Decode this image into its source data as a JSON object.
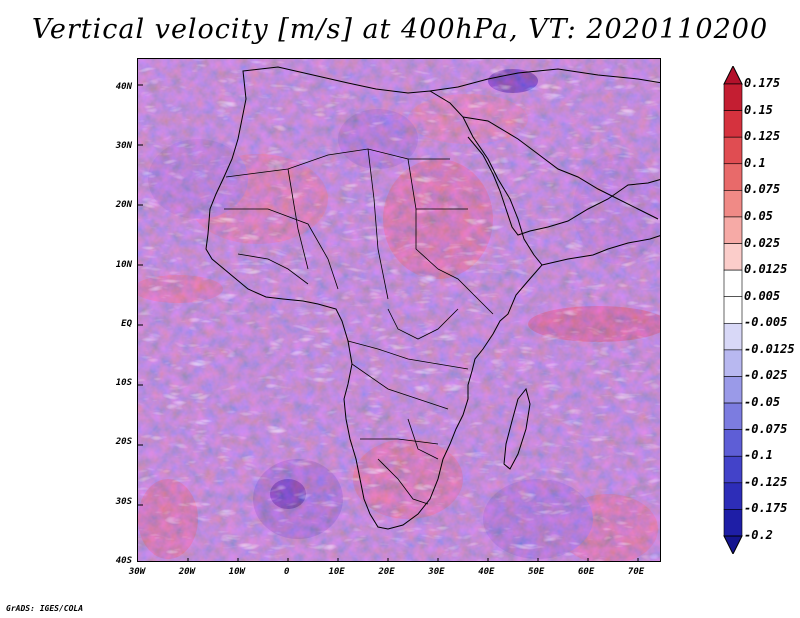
{
  "title": "Vertical velocity [m/s] at 400hPa, VT: 2020110200",
  "credit": "GrADS: IGES/COLA",
  "map": {
    "region": "Africa",
    "projection": "lat-lon",
    "lon_range": [
      -30,
      75
    ],
    "lat_range": [
      -40,
      45
    ],
    "lat_ticks": [
      "40N",
      "30N",
      "20N",
      "10N",
      "EQ",
      "10S",
      "20S",
      "30S",
      "40S"
    ],
    "lat_values": [
      40,
      30,
      20,
      10,
      0,
      -10,
      -20,
      -30,
      -40
    ],
    "lon_ticks": [
      "30W",
      "20W",
      "10W",
      "0",
      "10E",
      "20E",
      "30E",
      "40E",
      "50E",
      "60E",
      "70E"
    ],
    "lon_values": [
      -30,
      -20,
      -10,
      0,
      10,
      20,
      30,
      40,
      50,
      60,
      70
    ],
    "field": "vertical velocity",
    "units": "m/s",
    "level": "400hPa"
  },
  "colorbar": {
    "labels": [
      "0.175",
      "0.15",
      "0.125",
      "0.1",
      "0.075",
      "0.05",
      "0.025",
      "0.0125",
      "0.005",
      "-0.005",
      "-0.0125",
      "-0.025",
      "-0.05",
      "-0.075",
      "-0.1",
      "-0.125",
      "-0.175",
      "-0.2"
    ],
    "colors": [
      "#b3112b",
      "#c41e32",
      "#d5323e",
      "#e04d52",
      "#e86a6a",
      "#f08a86",
      "#f6aaa6",
      "#fbcdca",
      "#ffffff",
      "#ffffff",
      "#d8d8f7",
      "#b8b8f0",
      "#9a9ae8",
      "#7c7ce0",
      "#5e5ed6",
      "#4343c9",
      "#2d2db8",
      "#1e1ea6",
      "#15158f"
    ]
  }
}
